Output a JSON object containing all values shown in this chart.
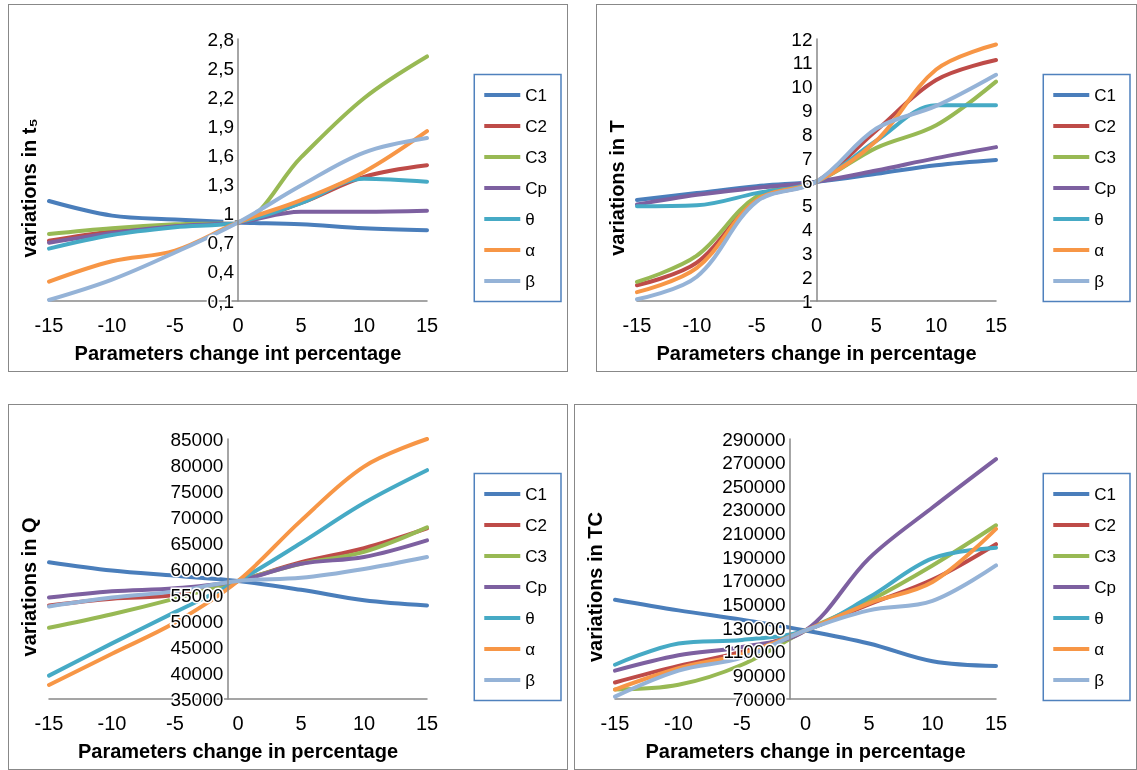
{
  "chart_data": [
    {
      "type": "line",
      "xlabel": "Parameters change int percentage",
      "ylabel": "variations in t₅",
      "x": [
        -15,
        -10,
        -5,
        0,
        5,
        10,
        15
      ],
      "xlim": [
        -15,
        15
      ],
      "xticks": [
        -15,
        -10,
        -5,
        0,
        5,
        10,
        15
      ],
      "ylim": [
        0.1,
        2.8
      ],
      "yticks": [
        {
          "value": 0.1,
          "label": "0,1"
        },
        {
          "value": 0.4,
          "label": "0,4"
        },
        {
          "value": 0.7,
          "label": "0,7"
        },
        {
          "value": 1,
          "label": "1"
        },
        {
          "value": 1.3,
          "label": "1,3"
        },
        {
          "value": 1.6,
          "label": "1,6"
        },
        {
          "value": 1.9,
          "label": "1,9"
        },
        {
          "value": 2.2,
          "label": "2,2"
        },
        {
          "value": 2.5,
          "label": "2,5"
        },
        {
          "value": 2.8,
          "label": "2,8"
        }
      ],
      "grid": false,
      "legend": "right",
      "marker": "none",
      "line_style": "solid",
      "series": [
        {
          "name": "C1",
          "color": "#4a7ebb",
          "values": [
            1.13,
            0.98,
            0.94,
            0.91,
            0.89,
            0.85,
            0.83
          ]
        },
        {
          "name": "C2",
          "color": "#be4b48",
          "values": [
            0.72,
            0.82,
            0.88,
            0.91,
            1.11,
            1.38,
            1.5
          ]
        },
        {
          "name": "C3",
          "color": "#98b954",
          "values": [
            0.79,
            0.85,
            0.89,
            0.91,
            1.58,
            2.19,
            2.62
          ]
        },
        {
          "name": "Cp",
          "color": "#7d60a0",
          "values": [
            0.7,
            0.8,
            0.87,
            0.91,
            1.02,
            1.02,
            1.03
          ]
        },
        {
          "name": "θ",
          "color": "#46aac5",
          "values": [
            0.64,
            0.78,
            0.86,
            0.91,
            1.11,
            1.36,
            1.33
          ]
        },
        {
          "name": "α",
          "color": "#f79646",
          "values": [
            0.3,
            0.51,
            0.62,
            0.91,
            1.14,
            1.43,
            1.85
          ]
        },
        {
          "name": "β",
          "color": "#95b3d7",
          "values": [
            0.11,
            0.32,
            0.6,
            0.91,
            1.29,
            1.63,
            1.78
          ]
        }
      ]
    },
    {
      "type": "line",
      "xlabel": "Parameters change in percentage",
      "ylabel": "variations in T",
      "x": [
        -15,
        -10,
        -5,
        0,
        5,
        10,
        15
      ],
      "xlim": [
        -15,
        15
      ],
      "xticks": [
        -15,
        -10,
        -5,
        0,
        5,
        10,
        15
      ],
      "ylim": [
        1,
        12
      ],
      "yticks": [
        1,
        2,
        3,
        4,
        5,
        6,
        7,
        8,
        9,
        10,
        11,
        12
      ],
      "grid": false,
      "legend": "right",
      "marker": "none",
      "line_style": "solid",
      "series": [
        {
          "name": "C1",
          "color": "#4a7ebb",
          "values": [
            5.24,
            5.53,
            5.82,
            6.01,
            6.34,
            6.7,
            6.92
          ]
        },
        {
          "name": "C2",
          "color": "#be4b48",
          "values": [
            1.66,
            2.61,
            5.24,
            6.01,
            8.16,
            10.28,
            11.12
          ]
        },
        {
          "name": "C3",
          "color": "#98b954",
          "values": [
            1.8,
            2.9,
            5.39,
            6.01,
            7.43,
            8.38,
            10.21
          ]
        },
        {
          "name": "Cp",
          "color": "#7d60a0",
          "values": [
            5.05,
            5.46,
            5.75,
            6.01,
            6.48,
            7,
            7.46
          ]
        },
        {
          "name": "θ",
          "color": "#46aac5",
          "values": [
            4.98,
            5.02,
            5.53,
            6.01,
            7.73,
            9.22,
            9.22
          ]
        },
        {
          "name": "α",
          "color": "#f79646",
          "values": [
            1.37,
            2.39,
            5.24,
            6.01,
            7.73,
            10.72,
            11.77
          ]
        },
        {
          "name": "β",
          "color": "#95b3d7",
          "values": [
            1.07,
            2.02,
            5.17,
            6.01,
            8.24,
            9.19,
            10.5
          ]
        }
      ]
    },
    {
      "type": "line",
      "xlabel": "Parameters change in percentage",
      "ylabel": "variations in Q",
      "x": [
        -15,
        -10,
        -5,
        0,
        5,
        10,
        15
      ],
      "xlim": [
        -15,
        15
      ],
      "xticks": [
        -15,
        -10,
        -5,
        0,
        5,
        10,
        15
      ],
      "ylim": [
        35000,
        85000
      ],
      "yticks": [
        35000,
        40000,
        45000,
        50000,
        55000,
        60000,
        65000,
        70000,
        75000,
        80000,
        85000
      ],
      "grid": false,
      "legend": "right",
      "marker": "none",
      "line_style": "solid",
      "series": [
        {
          "name": "C1",
          "color": "#4a7ebb",
          "values": [
            61300,
            59700,
            58700,
            57700,
            56000,
            54000,
            53000
          ]
        },
        {
          "name": "C2",
          "color": "#be4b48",
          "values": [
            53000,
            54300,
            55000,
            57700,
            61300,
            64000,
            67800
          ]
        },
        {
          "name": "C3",
          "color": "#98b954",
          "values": [
            48700,
            51300,
            54300,
            57700,
            61000,
            63300,
            68000
          ]
        },
        {
          "name": "Cp",
          "color": "#7d60a0",
          "values": [
            54500,
            55700,
            56300,
            57700,
            61000,
            62300,
            65500
          ]
        },
        {
          "name": "θ",
          "color": "#46aac5",
          "values": [
            39500,
            45700,
            51700,
            57700,
            65000,
            72700,
            79000
          ]
        },
        {
          "name": "α",
          "color": "#f79646",
          "values": [
            37700,
            43700,
            49700,
            57700,
            69300,
            79700,
            85000
          ]
        },
        {
          "name": "β",
          "color": "#95b3d7",
          "values": [
            52800,
            54500,
            55700,
            57700,
            58300,
            60000,
            62300
          ]
        }
      ]
    },
    {
      "type": "line",
      "xlabel": "Parameters change in percentage",
      "ylabel": "variations in TC",
      "x": [
        -15,
        -10,
        -5,
        0,
        5,
        10,
        15
      ],
      "xlim": [
        -15,
        15
      ],
      "xticks": [
        -15,
        -10,
        -5,
        0,
        5,
        10,
        15
      ],
      "ylim": [
        70000,
        290000
      ],
      "yticks": [
        70000,
        90000,
        110000,
        130000,
        150000,
        170000,
        190000,
        210000,
        230000,
        250000,
        270000,
        290000
      ],
      "grid": false,
      "legend": "right",
      "marker": "none",
      "line_style": "solid",
      "series": [
        {
          "name": "C1",
          "color": "#4a7ebb",
          "values": [
            154000,
            145000,
            137000,
            128000,
            117000,
            102000,
            98000
          ]
        },
        {
          "name": "C2",
          "color": "#be4b48",
          "values": [
            84000,
            98000,
            110000,
            128000,
            150000,
            171000,
            201000
          ]
        },
        {
          "name": "C3",
          "color": "#98b954",
          "values": [
            78000,
            82000,
            99000,
            128000,
            153000,
            183000,
            217000
          ]
        },
        {
          "name": "Cp",
          "color": "#7d60a0",
          "values": [
            94000,
            107000,
            114000,
            128000,
            189000,
            232000,
            273000
          ]
        },
        {
          "name": "θ",
          "color": "#46aac5",
          "values": [
            99000,
            117000,
            120000,
            128000,
            156000,
            189000,
            198000
          ]
        },
        {
          "name": "α",
          "color": "#f79646",
          "values": [
            78000,
            96000,
            108000,
            128000,
            151000,
            169000,
            214000
          ]
        },
        {
          "name": "β",
          "color": "#95b3d7",
          "values": [
            72000,
            94000,
            105000,
            128000,
            145000,
            153000,
            183000
          ]
        }
      ]
    }
  ]
}
